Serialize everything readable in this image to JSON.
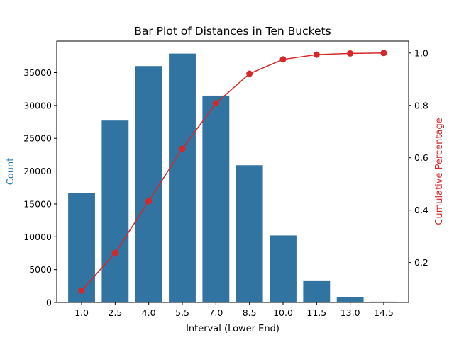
{
  "chart_data": {
    "type": "bar",
    "title": "Bar Plot of Distances in Ten Buckets",
    "xlabel": "Interval (Lower End)",
    "ylabel": "Count",
    "y2label": "Cumulative Percentage",
    "categories": [
      "1.0",
      "2.5",
      "4.0",
      "5.5",
      "7.0",
      "8.5",
      "10.0",
      "11.5",
      "13.0",
      "14.5"
    ],
    "series": [
      {
        "type": "bar",
        "axis": "left",
        "color": "#3274a1",
        "values": [
          16700,
          27700,
          36000,
          37900,
          31500,
          20900,
          10200,
          3250,
          850,
          120
        ]
      },
      {
        "type": "line",
        "axis": "right",
        "color": "#d62728",
        "marker": "circle",
        "values": [
          0.093,
          0.2365,
          0.4345,
          0.6345,
          0.8081,
          0.9209,
          0.9756,
          0.9936,
          0.9983,
          1.0
        ]
      }
    ],
    "ylim": [
      0,
      39800
    ],
    "y2lim": [
      0.0476,
      1.0454
    ],
    "yticks": [
      0,
      5000,
      10000,
      15000,
      20000,
      25000,
      30000,
      35000
    ],
    "y2ticks": [
      "0.2",
      "0.4",
      "0.6",
      "0.8",
      "1.0"
    ],
    "ylabel_color": "#1f77b4",
    "y2label_color": "#d62728",
    "grid": false,
    "legend": "none"
  }
}
